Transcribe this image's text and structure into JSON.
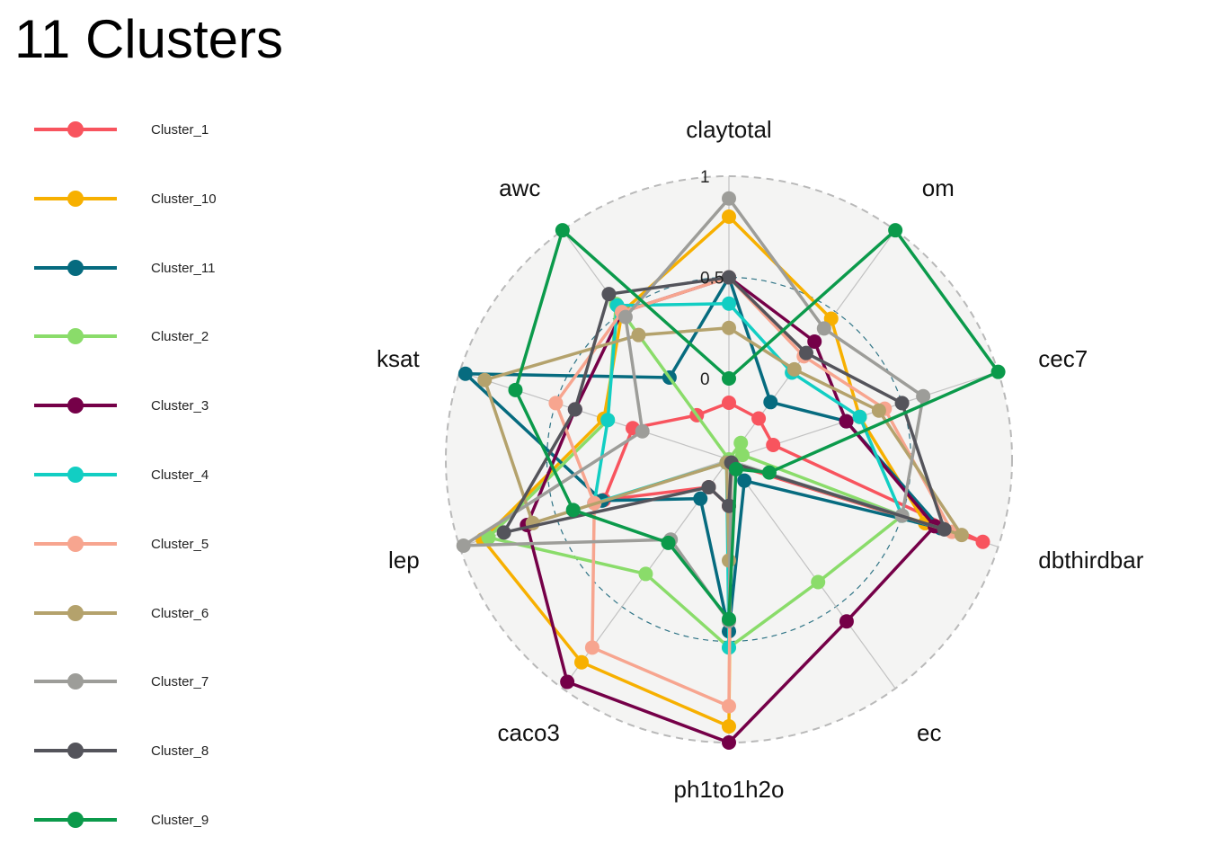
{
  "title": "11 Clusters",
  "chart_data": {
    "type": "radar",
    "axes": [
      "claytotal",
      "om",
      "cec7",
      "dbthirdbar",
      "ec",
      "ph1to1h2o",
      "caco3",
      "lep",
      "ksat",
      "awc"
    ],
    "rlim": [
      -0.4,
      1
    ],
    "ticks": [
      {
        "value": 0,
        "label": "0"
      },
      {
        "value": 0.5,
        "label": "0.5"
      },
      {
        "value": 1,
        "label": "1"
      }
    ],
    "grid": true,
    "legend_position": "left",
    "series": [
      {
        "name": "Cluster_1",
        "color": "#F8545E",
        "values": [
          -0.12,
          -0.15,
          -0.17,
          0.92,
          -0.37,
          -0.17,
          -0.23,
          0.25,
          0.1,
          -0.13
        ]
      },
      {
        "name": "Cluster_10",
        "color": "#F7B000",
        "values": [
          0.8,
          0.46,
          0.28,
          0.62,
          -0.38,
          0.92,
          0.84,
          0.88,
          0.25,
          0.5
        ]
      },
      {
        "name": "Cluster_11",
        "color": "#066B7F",
        "values": [
          0.5,
          -0.05,
          0.21,
          0.7,
          -0.27,
          0.45,
          -0.16,
          0.26,
          0.97,
          0.1
        ]
      },
      {
        "name": "Cluster_2",
        "color": "#8ADC6A",
        "values": [
          -0.4,
          -0.3,
          -0.33,
          0.5,
          0.35,
          0.53,
          0.3,
          0.85,
          0.23,
          0.55
        ]
      },
      {
        "name": "Cluster_3",
        "color": "#750048",
        "values": [
          0.5,
          0.32,
          0.21,
          0.67,
          0.59,
          1.0,
          0.96,
          0.65,
          0.4,
          0.5
        ]
      },
      {
        "name": "Cluster_4",
        "color": "#12CEC3",
        "values": [
          0.37,
          0.13,
          0.28,
          0.5,
          -0.38,
          0.53,
          -0.38,
          0.3,
          0.23,
          0.54
        ]
      },
      {
        "name": "Cluster_5",
        "color": "#F7A58F",
        "values": [
          0.5,
          0.23,
          0.41,
          0.76,
          -0.38,
          0.82,
          0.75,
          0.3,
          0.5,
          0.5
        ]
      },
      {
        "name": "Cluster_6",
        "color": "#B4A26C",
        "values": [
          0.25,
          0.15,
          0.38,
          0.81,
          -0.38,
          0.1,
          -0.38,
          0.62,
          0.87,
          0.36
        ]
      },
      {
        "name": "Cluster_7",
        "color": "#9D9D99",
        "values": [
          0.89,
          0.4,
          0.61,
          0.5,
          -0.38,
          0.4,
          0.09,
          0.98,
          0.05,
          0.47
        ]
      },
      {
        "name": "Cluster_8",
        "color": "#54545B",
        "values": [
          0.5,
          0.25,
          0.5,
          0.72,
          -0.38,
          -0.17,
          -0.23,
          0.77,
          0.4,
          0.61
        ]
      },
      {
        "name": "Cluster_9",
        "color": "#0B9A4B",
        "values": [
          -0.0,
          1.0,
          1.0,
          -0.19,
          -0.34,
          0.39,
          0.11,
          0.41,
          0.71,
          1.0
        ]
      }
    ]
  }
}
